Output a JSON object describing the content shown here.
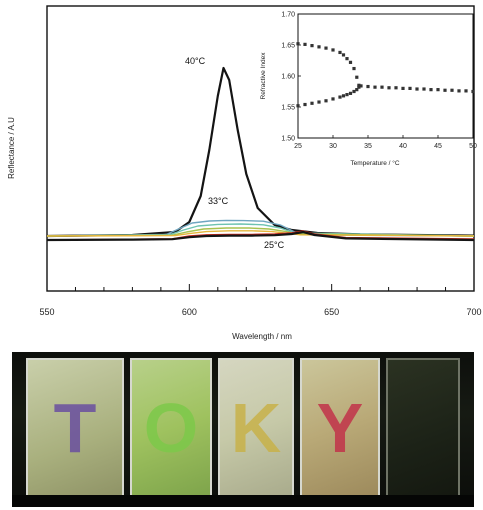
{
  "chart_data": [
    {
      "type": "line",
      "xlabel": "Wavelength / nm",
      "ylabel": "Reflectance / A.U",
      "xlim": [
        550,
        700
      ],
      "x_ticks": [
        550,
        600,
        650,
        700
      ],
      "series": [
        {
          "name": "40°C",
          "color": "#141414",
          "points": [
            [
              550,
              0.02
            ],
            [
              580,
              0.025
            ],
            [
              595,
              0.04
            ],
            [
              600,
              0.09
            ],
            [
              604,
              0.22
            ],
            [
              607,
              0.45
            ],
            [
              610,
              0.72
            ],
            [
              612,
              0.86
            ],
            [
              614,
              0.8
            ],
            [
              617,
              0.55
            ],
            [
              620,
              0.33
            ],
            [
              624,
              0.16
            ],
            [
              630,
              0.075
            ],
            [
              636,
              0.05
            ],
            [
              645,
              0.035
            ],
            [
              660,
              0.028
            ],
            [
              700,
              0.022
            ]
          ]
        },
        {
          "name": "33°C",
          "color": "#6fa6c0",
          "points": [
            [
              550,
              0.02
            ],
            [
              592,
              0.028
            ],
            [
              597,
              0.06
            ],
            [
              601,
              0.085
            ],
            [
              607,
              0.095
            ],
            [
              613,
              0.098
            ],
            [
              619,
              0.097
            ],
            [
              626,
              0.094
            ],
            [
              632,
              0.075
            ],
            [
              637,
              0.04
            ],
            [
              645,
              0.025
            ],
            [
              700,
              0.02
            ]
          ]
        },
        {
          "name": "",
          "color": "#6ec3b0",
          "points": [
            [
              550,
              0.02
            ],
            [
              593,
              0.026
            ],
            [
              598,
              0.05
            ],
            [
              603,
              0.07
            ],
            [
              610,
              0.078
            ],
            [
              618,
              0.08
            ],
            [
              626,
              0.076
            ],
            [
              632,
              0.06
            ],
            [
              637,
              0.035
            ],
            [
              700,
              0.02
            ]
          ]
        },
        {
          "name": "",
          "color": "#a8c24e",
          "points": [
            [
              550,
              0.02
            ],
            [
              594,
              0.024
            ],
            [
              599,
              0.04
            ],
            [
              605,
              0.055
            ],
            [
              613,
              0.06
            ],
            [
              621,
              0.06
            ],
            [
              628,
              0.055
            ],
            [
              634,
              0.042
            ],
            [
              638,
              0.03
            ],
            [
              700,
              0.02
            ]
          ]
        },
        {
          "name": "",
          "color": "#e6b53a",
          "points": [
            [
              550,
              0.02
            ],
            [
              595,
              0.022
            ],
            [
              600,
              0.032
            ],
            [
              606,
              0.042
            ],
            [
              614,
              0.046
            ],
            [
              622,
              0.046
            ],
            [
              629,
              0.042
            ],
            [
              635,
              0.033
            ],
            [
              639,
              0.026
            ],
            [
              700,
              0.02
            ]
          ]
        },
        {
          "name": "25°C",
          "color": "#cc2a1e",
          "points": [
            [
              550,
              0.0
            ],
            [
              580,
              0.004
            ],
            [
              594,
              0.006
            ],
            [
              600,
              0.02
            ],
            [
              606,
              0.026
            ],
            [
              614,
              0.028
            ],
            [
              622,
              0.028
            ],
            [
              630,
              0.03
            ],
            [
              636,
              0.036
            ],
            [
              640,
              0.045
            ],
            [
              644,
              0.03
            ],
            [
              655,
              0.012
            ],
            [
              700,
              0.005
            ]
          ]
        },
        {
          "name": "",
          "color": "#141414",
          "points": [
            [
              550,
              0.0
            ],
            [
              580,
              0.002
            ],
            [
              594,
              0.004
            ],
            [
              600,
              0.014
            ],
            [
              606,
              0.02
            ],
            [
              614,
              0.022
            ],
            [
              622,
              0.022
            ],
            [
              630,
              0.024
            ],
            [
              636,
              0.03
            ],
            [
              640,
              0.04
            ],
            [
              644,
              0.025
            ],
            [
              655,
              0.008
            ],
            [
              700,
              0.0
            ]
          ]
        }
      ],
      "annotations": [
        "40°C",
        "33°C",
        "25°C"
      ]
    },
    {
      "type": "scatter",
      "xlabel": "Temperature / °C",
      "ylabel": "Refractive Index",
      "xlim": [
        25,
        50
      ],
      "ylim": [
        1.5,
        1.7
      ],
      "x_ticks": [
        25,
        30,
        35,
        40,
        45,
        50
      ],
      "y_ticks": [
        1.5,
        1.55,
        1.6,
        1.65,
        1.7
      ],
      "y_tick_labels": [
        "1.50",
        "1.55",
        "1.60",
        "1.65",
        "1.70"
      ],
      "series": [
        {
          "name": "",
          "color": "#333333",
          "points": [
            [
              25,
              1.652
            ],
            [
              26,
              1.651
            ],
            [
              27,
              1.649
            ],
            [
              28,
              1.647
            ],
            [
              29,
              1.645
            ],
            [
              30,
              1.642
            ],
            [
              31,
              1.638
            ],
            [
              31.5,
              1.634
            ],
            [
              32,
              1.628
            ],
            [
              32.5,
              1.622
            ],
            [
              33,
              1.612
            ],
            [
              33.4,
              1.598
            ],
            [
              33.7,
              1.585
            ]
          ]
        },
        {
          "name": "",
          "color": "#333333",
          "points": [
            [
              25,
              1.552
            ],
            [
              26,
              1.554
            ],
            [
              27,
              1.556
            ],
            [
              28,
              1.558
            ],
            [
              29,
              1.56
            ],
            [
              30,
              1.563
            ],
            [
              31,
              1.566
            ],
            [
              31.5,
              1.568
            ],
            [
              32,
              1.57
            ],
            [
              32.5,
              1.572
            ],
            [
              33,
              1.575
            ],
            [
              33.4,
              1.578
            ],
            [
              33.7,
              1.582
            ]
          ]
        },
        {
          "name": "",
          "color": "#333333",
          "points": [
            [
              34,
              1.584
            ],
            [
              35,
              1.583
            ],
            [
              36,
              1.582
            ],
            [
              37,
              1.582
            ],
            [
              38,
              1.581
            ],
            [
              39,
              1.581
            ],
            [
              40,
              1.58
            ],
            [
              41,
              1.58
            ],
            [
              42,
              1.579
            ],
            [
              43,
              1.579
            ],
            [
              44,
              1.578
            ],
            [
              45,
              1.578
            ],
            [
              46,
              1.577
            ],
            [
              47,
              1.577
            ],
            [
              48,
              1.576
            ],
            [
              49,
              1.576
            ],
            [
              50,
              1.575
            ]
          ]
        }
      ]
    }
  ],
  "photo": {
    "letters": [
      {
        "text": "T",
        "color": "#6a4fa0"
      },
      {
        "text": "O",
        "color": "#7dc94a"
      },
      {
        "text": "K",
        "color": "#c8b24a"
      },
      {
        "text": "Y",
        "color": "#c2334a"
      },
      {
        "text": "",
        "color": "#000000"
      }
    ]
  }
}
